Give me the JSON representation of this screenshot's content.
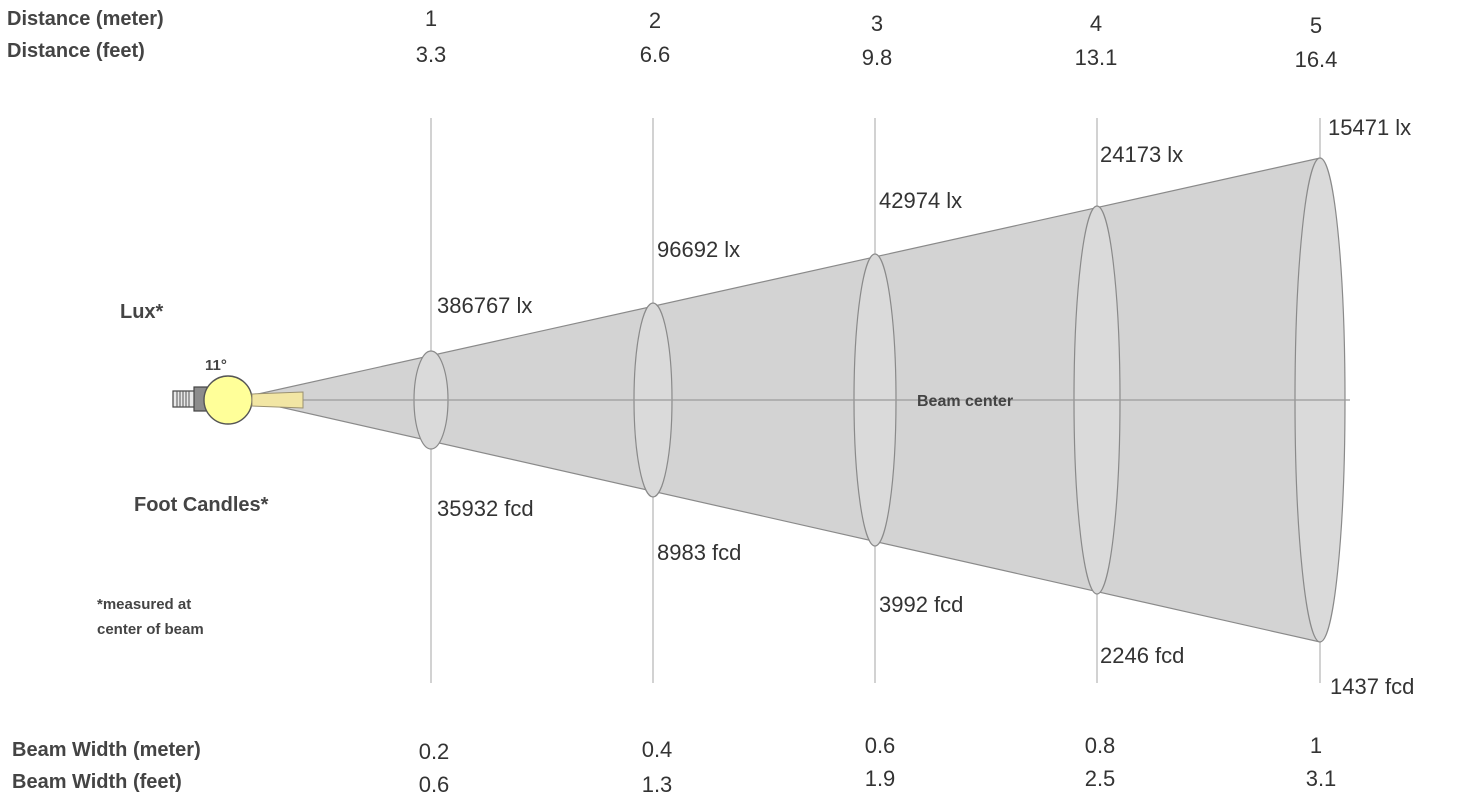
{
  "header": {
    "distance_meter_label": "Distance (meter)",
    "distance_feet_label": "Distance (feet)"
  },
  "footer": {
    "beam_width_meter_label": "Beam Width (meter)",
    "beam_width_feet_label": "Beam Width (feet)"
  },
  "legend": {
    "lux_label": "Lux*",
    "foot_candles_label": "Foot Candles*",
    "note": [
      "*measured at",
      "center of beam"
    ]
  },
  "beam": {
    "angle_label": "11°",
    "center_label": "Beam center",
    "beam_color": "#d3d3d3",
    "bulb_color": "#ffff99"
  },
  "stations": [
    {
      "distance_m": "1",
      "distance_ft": "3.3",
      "lux": "386767 lx",
      "fcd": "35932 fcd",
      "width_m": "0.2",
      "width_ft": "0.6"
    },
    {
      "distance_m": "2",
      "distance_ft": "6.6",
      "lux": "96692 lx",
      "fcd": "8983 fcd",
      "width_m": "0.4",
      "width_ft": "1.3"
    },
    {
      "distance_m": "3",
      "distance_ft": "9.8",
      "lux": "42974 lx",
      "fcd": "3992 fcd",
      "width_m": "0.6",
      "width_ft": "1.9"
    },
    {
      "distance_m": "4",
      "distance_ft": "13.1",
      "lux": "24173 lx",
      "fcd": "2246 fcd",
      "width_m": "0.8",
      "width_ft": "2.5"
    },
    {
      "distance_m": "5",
      "distance_ft": "16.4",
      "lux": "15471 lx",
      "fcd": "1437 fcd",
      "width_m": "1",
      "width_ft": "3.1"
    }
  ]
}
